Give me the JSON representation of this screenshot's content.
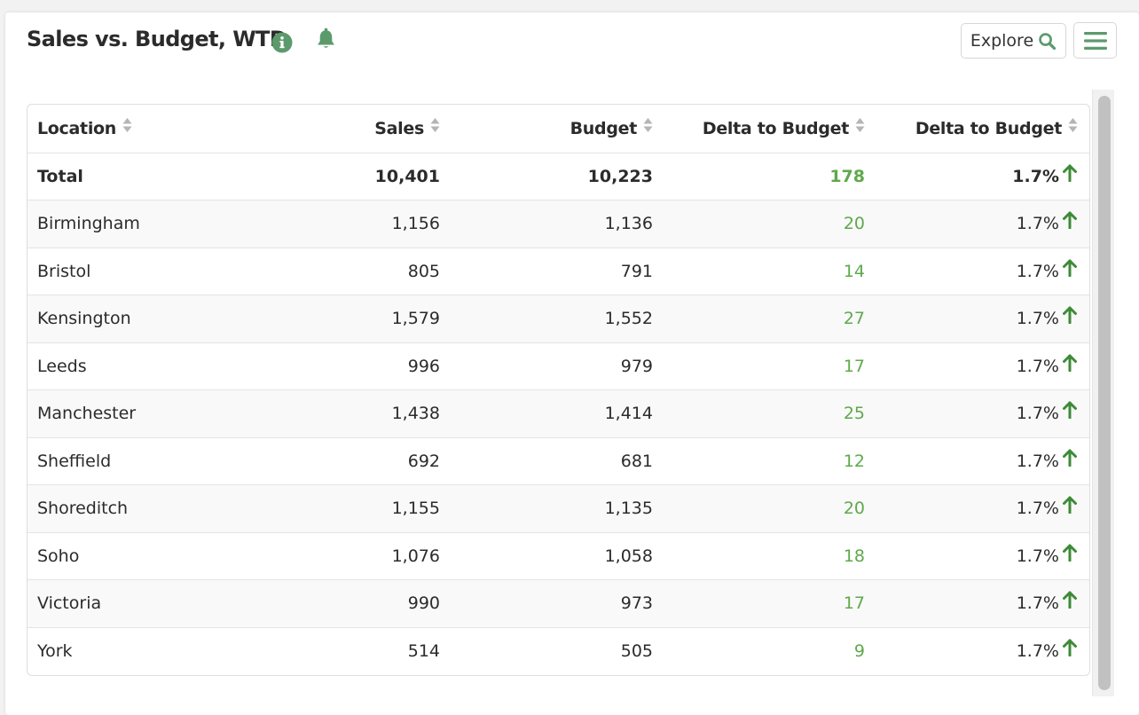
{
  "widget": {
    "title": "Sales vs. Budget, WTD",
    "explore_label": "Explore",
    "info_icon": "info-icon",
    "bell_icon": "bell-icon",
    "search_icon": "search-icon",
    "menu_icon": "hamburger-menu-icon"
  },
  "colors": {
    "accent_green": "#5c9a6c",
    "positive_green": "#5ea94b",
    "arrow_green": "#3d8b37"
  },
  "table": {
    "columns": [
      "Location",
      "Sales",
      "Budget",
      "Delta to Budget",
      "Delta to Budget"
    ],
    "total": {
      "location": "Total",
      "sales": "10,401",
      "budget": "10,223",
      "delta": "178",
      "delta_pct": "1.7%"
    },
    "rows": [
      {
        "location": "Birmingham",
        "sales": "1,156",
        "budget": "1,136",
        "delta": "20",
        "delta_pct": "1.7%"
      },
      {
        "location": "Bristol",
        "sales": "805",
        "budget": "791",
        "delta": "14",
        "delta_pct": "1.7%"
      },
      {
        "location": "Kensington",
        "sales": "1,579",
        "budget": "1,552",
        "delta": "27",
        "delta_pct": "1.7%"
      },
      {
        "location": "Leeds",
        "sales": "996",
        "budget": "979",
        "delta": "17",
        "delta_pct": "1.7%"
      },
      {
        "location": "Manchester",
        "sales": "1,438",
        "budget": "1,414",
        "delta": "25",
        "delta_pct": "1.7%"
      },
      {
        "location": "Sheffield",
        "sales": "692",
        "budget": "681",
        "delta": "12",
        "delta_pct": "1.7%"
      },
      {
        "location": "Shoreditch",
        "sales": "1,155",
        "budget": "1,135",
        "delta": "20",
        "delta_pct": "1.7%"
      },
      {
        "location": "Soho",
        "sales": "1,076",
        "budget": "1,058",
        "delta": "18",
        "delta_pct": "1.7%"
      },
      {
        "location": "Victoria",
        "sales": "990",
        "budget": "973",
        "delta": "17",
        "delta_pct": "1.7%"
      },
      {
        "location": "York",
        "sales": "514",
        "budget": "505",
        "delta": "9",
        "delta_pct": "1.7%"
      }
    ]
  }
}
